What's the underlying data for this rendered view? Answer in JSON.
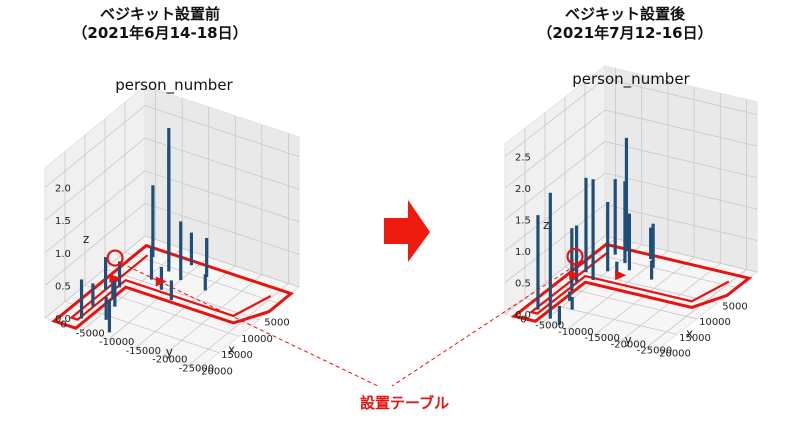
{
  "left_panel": {
    "heading": "ベジキット設置前",
    "period": "（2021年6月14-18日）"
  },
  "right_panel": {
    "heading": "ベジキット設置後",
    "period": "（2021年7月12-16日）"
  },
  "callout": {
    "label": "設置テーブル"
  },
  "colors": {
    "bar": "#1f4e79",
    "highlight": "#e8120e",
    "grid": "#c8c8c8",
    "pane": "#f0f0f0"
  },
  "icons": {
    "arrow": "right-arrow-icon"
  },
  "chart_data": [
    {
      "type": "bar3d",
      "title": "person_number",
      "xlabel": "x",
      "ylabel": "y",
      "zlabel": "z",
      "x_ticks": [
        5000,
        10000,
        15000,
        20000
      ],
      "y_ticks": [
        0,
        -5000,
        -10000,
        -15000,
        -20000,
        -25000
      ],
      "z_ticks": [
        0.0,
        0.5,
        1.0,
        1.5,
        2.0
      ],
      "xlim": [
        0,
        25000
      ],
      "ylim": [
        -27000,
        2000
      ],
      "zlim": [
        0,
        2.3
      ],
      "bars": [
        {
          "x": 2000,
          "y": -4000,
          "z": 1.6
        },
        {
          "x": 4000,
          "y": -2500,
          "z": 1.1
        },
        {
          "x": 6000,
          "y": -7000,
          "z": 2.2
        },
        {
          "x": 7000,
          "y": -10000,
          "z": 0.9
        },
        {
          "x": 9000,
          "y": -6000,
          "z": 0.5
        },
        {
          "x": 10500,
          "y": -9000,
          "z": 0.35
        },
        {
          "x": 12000,
          "y": -12000,
          "z": 0.3
        },
        {
          "x": 3000,
          "y": -9000,
          "z": 0.5
        },
        {
          "x": 4500,
          "y": -13000,
          "z": 0.6
        },
        {
          "x": 7500,
          "y": -15000,
          "z": 0.25
        },
        {
          "x": 13000,
          "y": -3000,
          "z": 0.4
        },
        {
          "x": 14500,
          "y": -1500,
          "z": 0.5
        },
        {
          "x": 16000,
          "y": -4000,
          "z": 0.3
        },
        {
          "x": 17500,
          "y": -5500,
          "z": 0.4
        },
        {
          "x": 19000,
          "y": -2500,
          "z": 0.35
        },
        {
          "x": 21000,
          "y": -6500,
          "z": 0.35
        },
        {
          "x": 22500,
          "y": -3000,
          "z": 0.6
        },
        {
          "x": 23500,
          "y": -9000,
          "z": 0.5
        }
      ]
    },
    {
      "type": "bar3d",
      "title": "person_number",
      "xlabel": "x",
      "ylabel": "y",
      "zlabel": "z",
      "x_ticks": [
        5000,
        10000,
        15000,
        20000
      ],
      "y_ticks": [
        0,
        -5000,
        -10000,
        -15000,
        -20000,
        -25000
      ],
      "z_ticks": [
        0.0,
        0.5,
        1.0,
        1.5,
        2.0,
        2.5
      ],
      "xlim": [
        0,
        25000
      ],
      "ylim": [
        -27000,
        2000
      ],
      "zlim": [
        0,
        2.7
      ],
      "bars": [
        {
          "x": 2500,
          "y": -4000,
          "z": 1.8
        },
        {
          "x": 4000,
          "y": -3000,
          "z": 1.2
        },
        {
          "x": 5500,
          "y": -6000,
          "z": 1.3
        },
        {
          "x": 7000,
          "y": -8000,
          "z": 0.9
        },
        {
          "x": 8500,
          "y": -5000,
          "z": 1.1
        },
        {
          "x": 10000,
          "y": -2000,
          "z": 1.5
        },
        {
          "x": 11500,
          "y": -4500,
          "z": 1.6
        },
        {
          "x": 13000,
          "y": -2500,
          "z": 0.9
        },
        {
          "x": 15500,
          "y": -3500,
          "z": 1.0
        },
        {
          "x": 3000,
          "y": -9000,
          "z": 0.5
        },
        {
          "x": 5000,
          "y": -11000,
          "z": 0.7
        },
        {
          "x": 8000,
          "y": -13000,
          "z": 0.3
        },
        {
          "x": 18000,
          "y": -5000,
          "z": 0.15
        },
        {
          "x": 20000,
          "y": -7000,
          "z": 0.2
        },
        {
          "x": 22000,
          "y": -2000,
          "z": 1.5
        },
        {
          "x": 23500,
          "y": -5500,
          "z": 2.0
        },
        {
          "x": 24500,
          "y": -8000,
          "z": 0.3
        },
        {
          "x": 9500,
          "y": -7500,
          "z": 0.25
        }
      ]
    }
  ]
}
